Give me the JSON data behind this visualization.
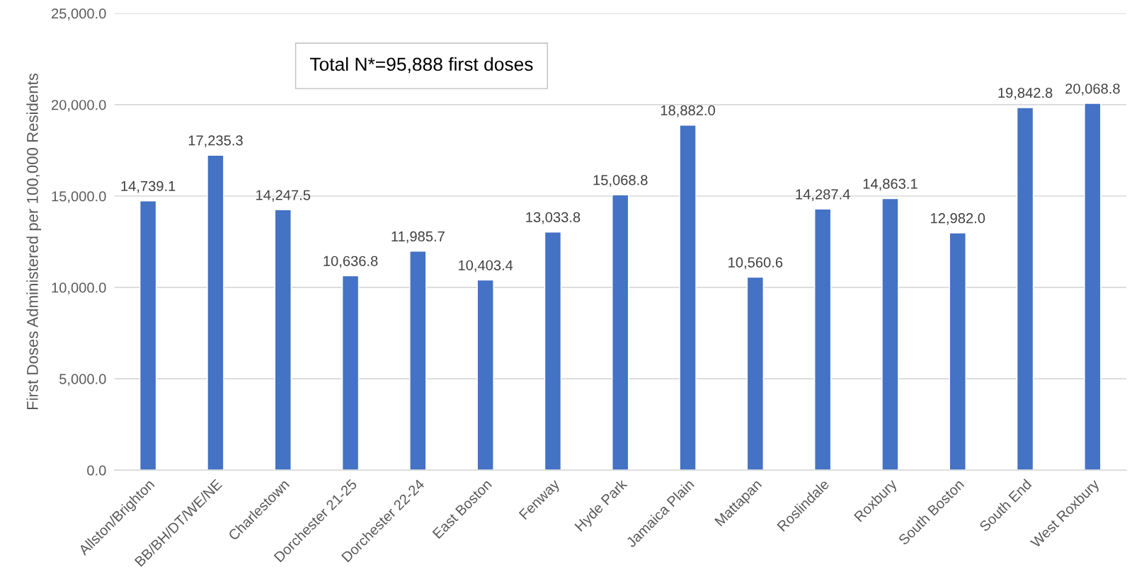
{
  "chart_data": {
    "type": "bar",
    "ylabel": "First Doses Administered per 100,000 Residents",
    "annotations": [
      "Total N*=95,888 first doses"
    ],
    "categories": [
      "Allston/Brighton",
      "BB/BH/DT/WE/NE",
      "Charlestown",
      "Dorchester 21-25",
      "Dorchester 22-24",
      "East Boston",
      "Fenway",
      "Hyde Park",
      "Jamaica Plain",
      "Mattapan",
      "Roslindale",
      "Roxbury",
      "South Boston",
      "South End",
      "West Roxbury"
    ],
    "values": [
      14739.1,
      17235.3,
      14247.5,
      10636.8,
      11985.7,
      10403.4,
      13033.8,
      15068.8,
      18882.0,
      10560.6,
      14287.4,
      14863.1,
      12982.0,
      19842.8,
      20068.8
    ],
    "value_labels": [
      "14,739.1",
      "17,235.3",
      "14,247.5",
      "10,636.8",
      "11,985.7",
      "10,403.4",
      "13,033.8",
      "15,068.8",
      "18,882.0",
      "10,560.6",
      "14,287.4",
      "14,863.1",
      "12,982.0",
      "19,842.8",
      "20,068.8"
    ],
    "color": "#4472c4",
    "ylim": [
      0,
      25000
    ],
    "yticks": [
      {
        "value": 0,
        "label": "0.0"
      },
      {
        "value": 5000,
        "label": "5,000.0"
      },
      {
        "value": 10000,
        "label": "10,000.0"
      },
      {
        "value": 15000,
        "label": "15,000.0"
      },
      {
        "value": 20000,
        "label": "20,000.0"
      },
      {
        "value": 25000,
        "label": "25,000.0"
      }
    ],
    "grid": "y"
  }
}
